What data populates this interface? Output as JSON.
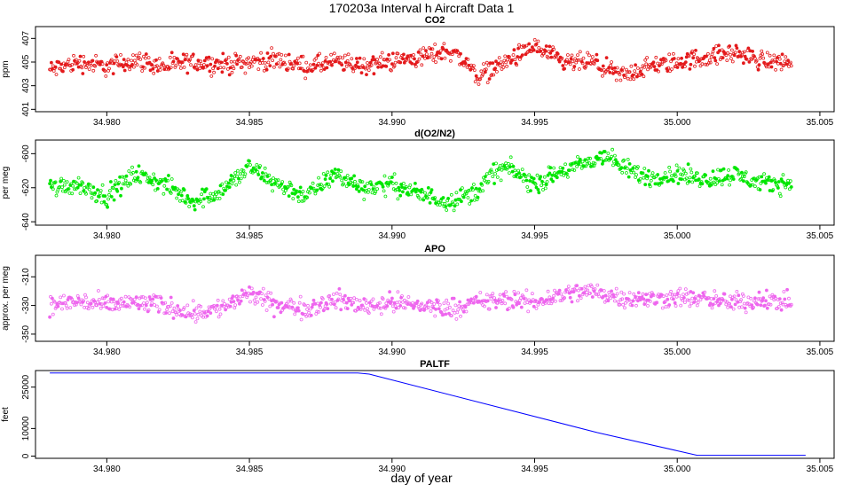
{
  "figure": {
    "title": "170203a   Interval h Aircraft Data 1",
    "xlabel": "day of year"
  },
  "chart_data": [
    {
      "type": "scatter",
      "title": "CO2",
      "xlabel": "",
      "ylabel": "ppm",
      "xlim": [
        34.9775,
        35.0055
      ],
      "ylim": [
        400.8,
        408.0
      ],
      "xticks": [
        "34.980",
        "34.985",
        "34.990",
        "34.995",
        "35.000",
        "35.005"
      ],
      "yticks": [
        "401",
        "403",
        "405",
        "407"
      ],
      "grid": false,
      "color": "#e41a1c",
      "series": [
        {
          "values": [
            [
              34.978,
              404.3
            ],
            [
              34.979,
              405.0
            ],
            [
              34.98,
              404.6
            ],
            [
              34.981,
              405.2
            ],
            [
              34.982,
              404.6
            ],
            [
              34.983,
              405.0
            ],
            [
              34.984,
              404.8
            ],
            [
              34.985,
              405.0
            ],
            [
              34.986,
              405.2
            ],
            [
              34.987,
              404.6
            ],
            [
              34.988,
              405.0
            ],
            [
              34.989,
              404.7
            ],
            [
              34.99,
              405.1
            ],
            [
              34.991,
              405.4
            ],
            [
              34.992,
              406.0
            ],
            [
              34.9925,
              405.2
            ],
            [
              34.993,
              403.8
            ],
            [
              34.994,
              405.0
            ],
            [
              34.995,
              406.3
            ],
            [
              34.996,
              404.9
            ],
            [
              34.997,
              405.0
            ],
            [
              34.998,
              403.8
            ],
            [
              34.999,
              404.6
            ],
            [
              35.0,
              405.0
            ],
            [
              35.001,
              405.4
            ],
            [
              35.002,
              405.8
            ],
            [
              35.003,
              405.1
            ],
            [
              35.004,
              405.0
            ]
          ]
        }
      ]
    },
    {
      "type": "scatter",
      "title": "d(O2/N2)",
      "xlabel": "",
      "ylabel": "per meg",
      "xlim": [
        34.9775,
        35.0055
      ],
      "ylim": [
        -642,
        -592
      ],
      "xticks": [
        "34.980",
        "34.985",
        "34.990",
        "34.995",
        "35.000",
        "35.005"
      ],
      "yticks": [
        "-640",
        "-620",
        "-600"
      ],
      "grid": false,
      "color": "#00e600",
      "series": [
        {
          "values": [
            [
              34.978,
              -620
            ],
            [
              34.979,
              -618
            ],
            [
              34.98,
              -625
            ],
            [
              34.981,
              -612
            ],
            [
              34.982,
              -618
            ],
            [
              34.983,
              -628
            ],
            [
              34.984,
              -622
            ],
            [
              34.985,
              -608
            ],
            [
              34.986,
              -618
            ],
            [
              34.987,
              -625
            ],
            [
              34.988,
              -612
            ],
            [
              34.989,
              -620
            ],
            [
              34.99,
              -618
            ],
            [
              34.991,
              -624
            ],
            [
              34.992,
              -628
            ],
            [
              34.993,
              -622
            ],
            [
              34.9935,
              -612
            ],
            [
              34.994,
              -608
            ],
            [
              34.995,
              -618
            ],
            [
              34.996,
              -610
            ],
            [
              34.997,
              -605
            ],
            [
              34.9975,
              -600
            ],
            [
              34.998,
              -608
            ],
            [
              34.999,
              -614
            ],
            [
              35.0,
              -612
            ],
            [
              35.001,
              -615
            ],
            [
              35.002,
              -612
            ],
            [
              35.003,
              -618
            ],
            [
              35.004,
              -617
            ]
          ]
        }
      ]
    },
    {
      "type": "scatter",
      "title": "APO",
      "xlabel": "",
      "ylabel": "approx. per meg",
      "xlim": [
        34.9775,
        35.0055
      ],
      "ylim": [
        -355,
        -295
      ],
      "xticks": [
        "34.980",
        "34.985",
        "34.990",
        "34.995",
        "35.000",
        "35.005"
      ],
      "yticks": [
        "-350",
        "-330",
        "-310"
      ],
      "grid": false,
      "color": "#ee66ee",
      "series": [
        {
          "values": [
            [
              34.978,
              -330
            ],
            [
              34.979,
              -327
            ],
            [
              34.98,
              -330
            ],
            [
              34.981,
              -328
            ],
            [
              34.982,
              -330
            ],
            [
              34.983,
              -335
            ],
            [
              34.984,
              -332
            ],
            [
              34.985,
              -322
            ],
            [
              34.986,
              -330
            ],
            [
              34.987,
              -332
            ],
            [
              34.988,
              -326
            ],
            [
              34.989,
              -330
            ],
            [
              34.99,
              -328
            ],
            [
              34.991,
              -330
            ],
            [
              34.992,
              -332
            ],
            [
              34.993,
              -328
            ],
            [
              34.994,
              -326
            ],
            [
              34.995,
              -328
            ],
            [
              34.996,
              -322
            ],
            [
              34.997,
              -320
            ],
            [
              34.998,
              -324
            ],
            [
              34.999,
              -326
            ],
            [
              35.0,
              -324
            ],
            [
              35.001,
              -326
            ],
            [
              35.002,
              -328
            ],
            [
              35.003,
              -326
            ],
            [
              35.004,
              -328
            ]
          ]
        }
      ]
    },
    {
      "type": "line",
      "title": "PALTF",
      "xlabel": "day of year",
      "ylabel": "feet",
      "xlim": [
        34.9775,
        35.0055
      ],
      "ylim": [
        -800,
        31000
      ],
      "xticks": [
        "34.980",
        "34.985",
        "34.990",
        "34.995",
        "35.000",
        "35.005"
      ],
      "yticks": [
        "0",
        "10000",
        "25000"
      ],
      "grid": false,
      "color": "#0000ff",
      "series": [
        {
          "values": [
            [
              34.978,
              30100
            ],
            [
              34.9888,
              30100
            ],
            [
              34.9892,
              29700
            ],
            [
              34.9972,
              8500
            ],
            [
              35.0007,
              300
            ],
            [
              35.0045,
              300
            ]
          ]
        }
      ]
    }
  ]
}
